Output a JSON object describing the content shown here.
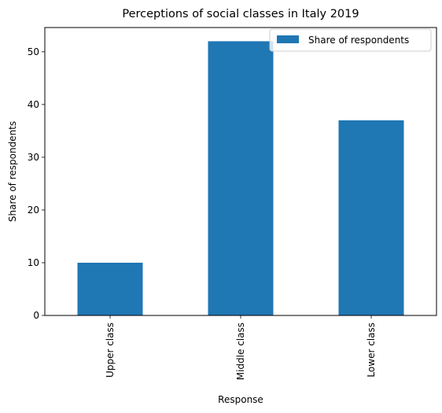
{
  "chart_data": {
    "type": "bar",
    "title": "Perceptions of social classes in Italy 2019",
    "xlabel": "Response",
    "ylabel": "Share of respondents",
    "categories": [
      "Upper class",
      "Middle class",
      "Lower class"
    ],
    "series": [
      {
        "name": "Share of respondents",
        "values": [
          10,
          52,
          37
        ],
        "color": "#1f77b4"
      }
    ],
    "ylim": [
      0,
      54.6
    ],
    "yticks": [
      0,
      10,
      20,
      30,
      40,
      50
    ],
    "grid": false,
    "legend_position": "top-right"
  }
}
